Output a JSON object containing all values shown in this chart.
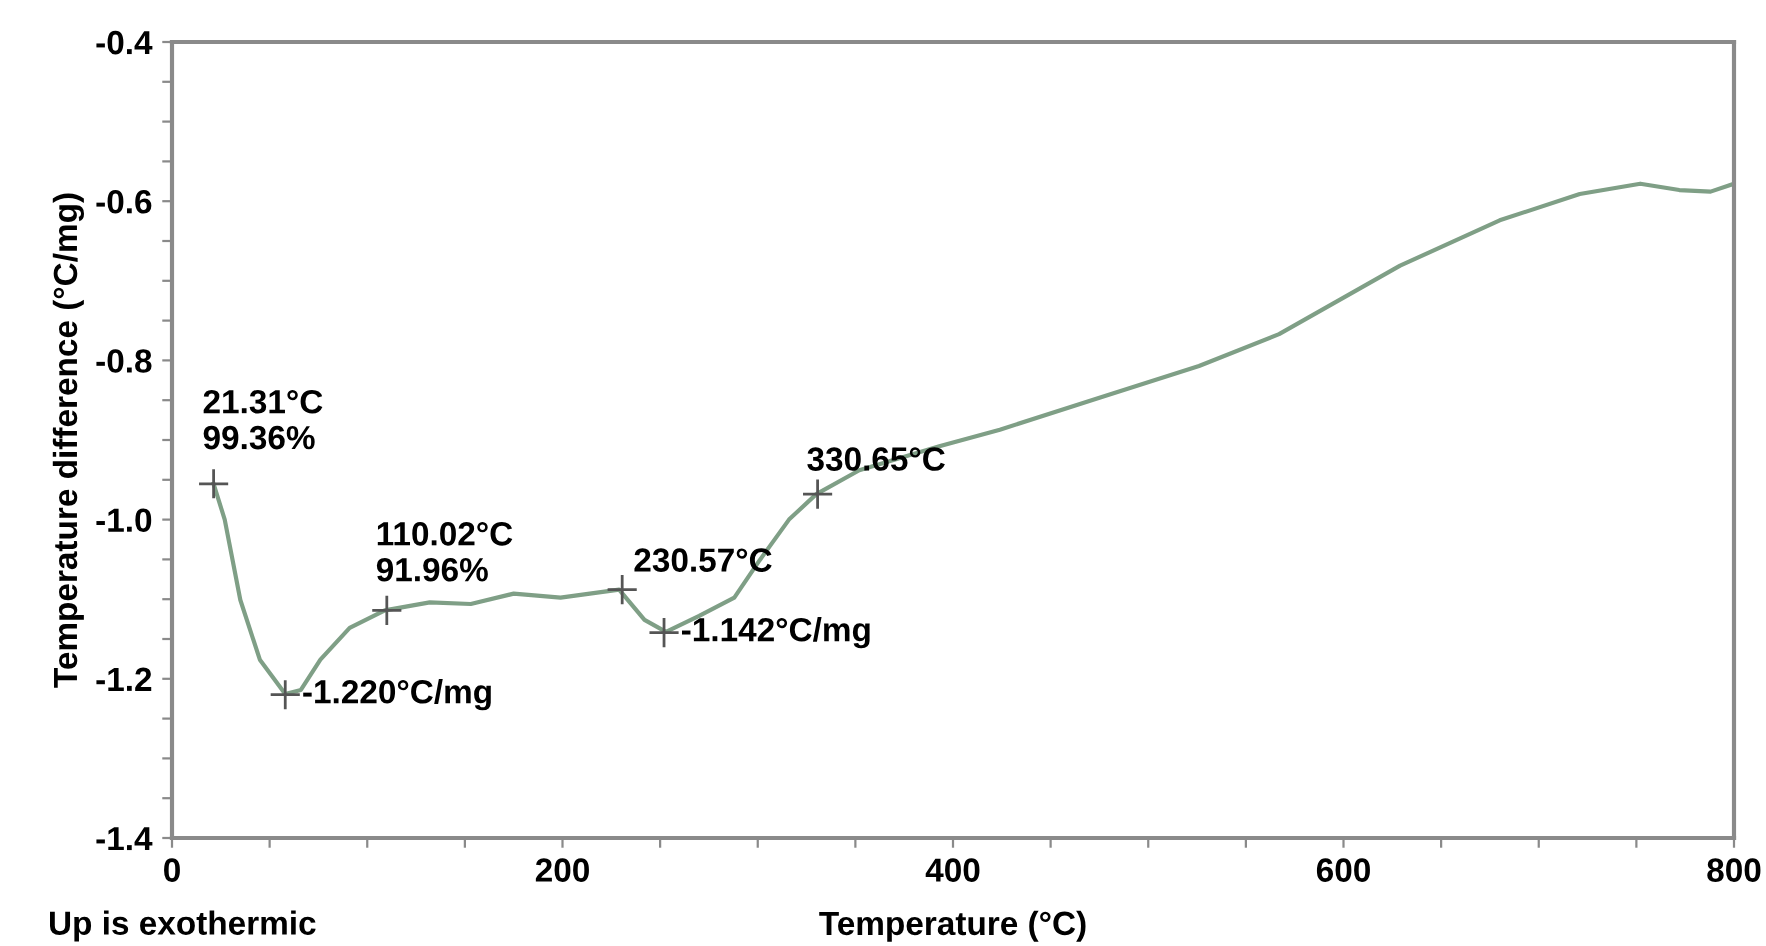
{
  "chart_data": {
    "type": "line",
    "xlabel": "Temperature (°C)",
    "ylabel": "Temperature difference (°C/mg)",
    "xlim": [
      0,
      800
    ],
    "ylim": [
      -1.4,
      -0.4
    ],
    "xticks": [
      0,
      {
        "value": 50,
        "label": null
      },
      {
        "value": 100,
        "label": null
      },
      {
        "value": 150,
        "label": null
      },
      200,
      {
        "value": 250,
        "label": null
      },
      {
        "value": 300,
        "label": null
      },
      {
        "value": 350,
        "label": null
      },
      400,
      {
        "value": 450,
        "label": null
      },
      {
        "value": 500,
        "label": null
      },
      {
        "value": 550,
        "label": null
      },
      600,
      {
        "value": 650,
        "label": null
      },
      {
        "value": 700,
        "label": null
      },
      {
        "value": 750,
        "label": null
      },
      800
    ],
    "yticks": [
      {
        "value": -1.4,
        "label": "-1.4"
      },
      {
        "value": -1.35,
        "label": null
      },
      {
        "value": -1.3,
        "label": null
      },
      {
        "value": -1.25,
        "label": null
      },
      {
        "value": -1.2,
        "label": "-1.2"
      },
      {
        "value": -1.15,
        "label": null
      },
      {
        "value": -1.1,
        "label": null
      },
      {
        "value": -1.05,
        "label": null
      },
      {
        "value": -1.0,
        "label": "-1.0"
      },
      {
        "value": -0.95,
        "label": null
      },
      {
        "value": -0.9,
        "label": null
      },
      {
        "value": -0.85,
        "label": null
      },
      {
        "value": -0.8,
        "label": "-0.8"
      },
      {
        "value": -0.75,
        "label": null
      },
      {
        "value": -0.7,
        "label": null
      },
      {
        "value": -0.65,
        "label": null
      },
      {
        "value": -0.6,
        "label": "-0.6"
      },
      {
        "value": -0.55,
        "label": null
      },
      {
        "value": -0.5,
        "label": null
      },
      {
        "value": -0.45,
        "label": null
      },
      {
        "value": -0.4,
        "label": "-0.4"
      }
    ],
    "grid": false,
    "legend": false,
    "series": [
      {
        "color": "#7f9f86",
        "marker": "none",
        "line_style": "solid",
        "x": [
          21.3,
          27,
          35,
          45,
          58,
          66,
          76,
          91,
          109,
          132,
          153,
          175,
          199,
          229,
          242,
          253,
          270,
          288,
          301,
          316,
          330,
          352,
          393,
          424,
          475,
          526,
          567,
          598,
          629,
          680,
          721,
          752,
          772,
          788,
          800
        ],
        "values": [
          -0.955,
          -1.0,
          -1.101,
          -1.176,
          -1.219,
          -1.214,
          -1.176,
          -1.136,
          -1.114,
          -1.104,
          -1.106,
          -1.093,
          -1.098,
          -1.088,
          -1.126,
          -1.141,
          -1.121,
          -1.098,
          -1.051,
          -1.0,
          -0.968,
          -0.938,
          -0.908,
          -0.887,
          -0.847,
          -0.807,
          -0.767,
          -0.724,
          -0.681,
          -0.624,
          -0.591,
          -0.578,
          -0.586,
          -0.588,
          -0.578
        ]
      },
      {
        "type": "scatter",
        "color": "#555555",
        "marker": "cross",
        "x": [
          21.31,
          58,
          110.02,
          230.57,
          252,
          330.65
        ],
        "values": [
          -0.955,
          -1.22,
          -1.114,
          -1.088,
          -1.142,
          -0.968
        ]
      }
    ],
    "annotations": [
      {
        "text": "21.31°C\n99.36%",
        "x": 21.31,
        "y": -0.955
      },
      {
        "text": "-1.220°C/mg",
        "x": 58,
        "y": -1.22
      },
      {
        "text": "110.02°C\n91.96%",
        "x": 110.02,
        "y": -1.114
      },
      {
        "text": "230.57°C",
        "x": 230.57,
        "y": -1.088
      },
      {
        "text": "-1.142°C/mg",
        "x": 252,
        "y": -1.142
      },
      {
        "text": "330.65°C",
        "x": 330.65,
        "y": -0.968
      },
      "Up is exothermic"
    ]
  }
}
